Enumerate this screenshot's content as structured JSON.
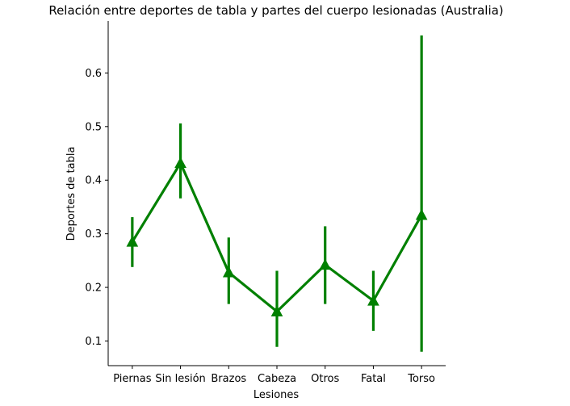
{
  "chart_data": {
    "type": "line",
    "title": "Relación entre deportes de tabla y partes del cuerpo lesionadas (Australia)",
    "xlabel": "Lesiones",
    "ylabel": "Deportes de tabla",
    "categories": [
      "Piernas",
      "Sin lesión",
      "Brazos",
      "Cabeza",
      "Otros",
      "Fatal",
      "Torso"
    ],
    "values": [
      0.285,
      0.432,
      0.228,
      0.155,
      0.242,
      0.175,
      0.335
    ],
    "error_low": [
      0.238,
      0.366,
      0.169,
      0.089,
      0.169,
      0.119,
      0.08
    ],
    "error_high": [
      0.331,
      0.506,
      0.293,
      0.231,
      0.314,
      0.231,
      0.67
    ],
    "ylim": [
      0.054,
      0.697
    ],
    "yticks": [
      0.1,
      0.2,
      0.3,
      0.4,
      0.5,
      0.6
    ],
    "ytick_labels": [
      "0.1",
      "0.2",
      "0.3",
      "0.4",
      "0.5",
      "0.6"
    ],
    "marker": "triangle",
    "color": "#008000",
    "grid": false
  }
}
